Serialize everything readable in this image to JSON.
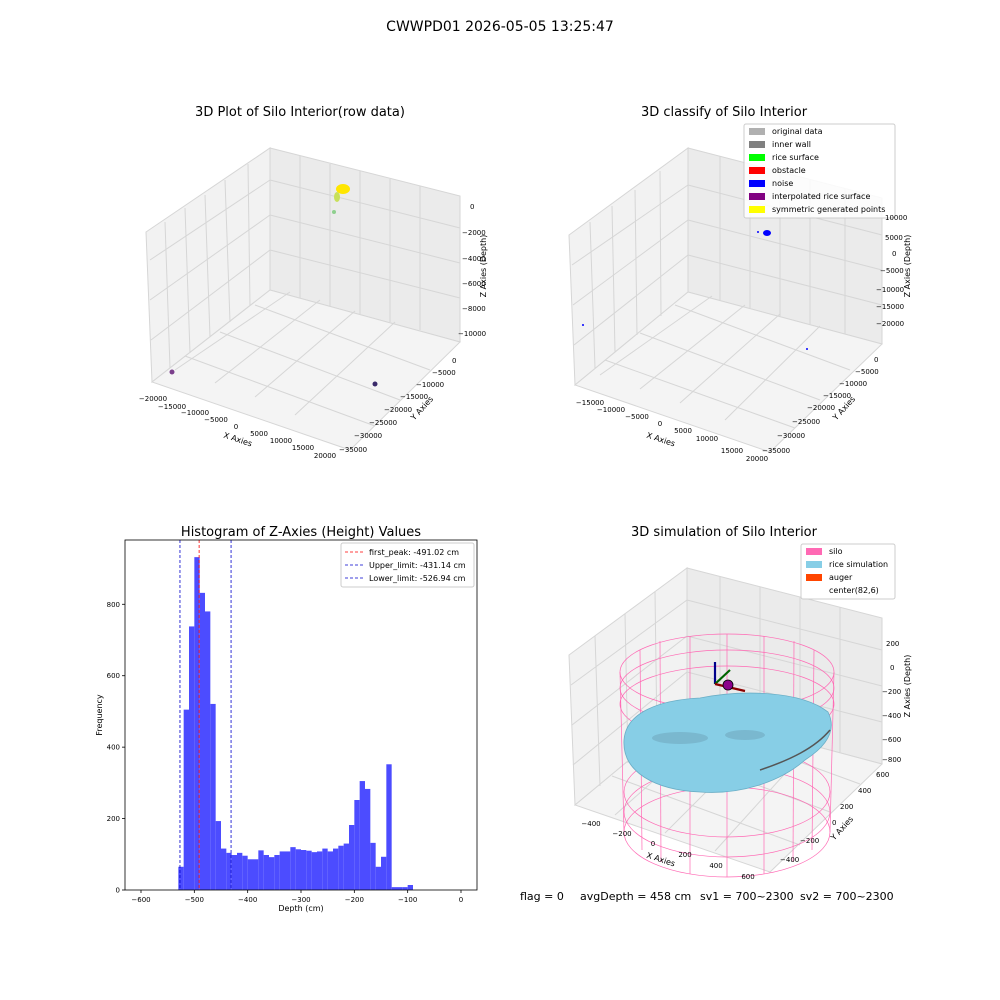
{
  "figure_title": "CWWPD01 2026-05-05 13:25:47",
  "footer": {
    "flag": "flag = 0",
    "avg_depth": "avgDepth = 458 cm",
    "sv1": "sv1 = 700~2300",
    "sv2": "sv2 = 700~2300"
  },
  "colors": {
    "histogram_bar": "#4c4cff",
    "first_peak_line": "#ff0000",
    "limit_lines": "#0000cc",
    "silo_wire": "#ff69b4",
    "rice_surface": "#87cee6",
    "auger": "#ff4500"
  },
  "chart_data": [
    {
      "type": "scatter",
      "title": "3D Plot of Silo Interior(row data)",
      "xlabel": "X Axies",
      "ylabel": "Y Axies",
      "zlabel": "Z Axies (Depth)",
      "x_ticks": [
        "−20000",
        "−15000",
        "−10000",
        "−5000",
        "0",
        "5000",
        "10000",
        "15000",
        "20000"
      ],
      "y_ticks": [
        "0",
        "−5000",
        "−10000",
        "−15000",
        "−20000",
        "−25000",
        "−30000",
        "−35000"
      ],
      "z_ticks": [
        "0",
        "−2000",
        "−4000",
        "−6000",
        "−8000",
        "−10000"
      ],
      "xlim": [
        -20000,
        20000
      ],
      "ylim": [
        -35000,
        0
      ],
      "zlim": [
        -10000,
        0
      ]
    },
    {
      "type": "scatter",
      "title": "3D classify of Silo Interior",
      "xlabel": "X Axies",
      "ylabel": "Y Axies",
      "zlabel": "Z Axies (Depth)",
      "x_ticks": [
        "−15000",
        "−10000",
        "−5000",
        "0",
        "5000",
        "10000",
        "15000",
        "20000"
      ],
      "y_ticks": [
        "0",
        "−5000",
        "−10000",
        "−15000",
        "−20000",
        "−25000",
        "−30000",
        "−35000"
      ],
      "z_ticks": [
        "10000",
        "5000",
        "0",
        "−5000",
        "−10000",
        "−15000",
        "−20000"
      ],
      "legend_position": "top-right",
      "legend": [
        {
          "label": "original data",
          "color": "#b0b0b0"
        },
        {
          "label": "inner wall",
          "color": "#808080"
        },
        {
          "label": "rice surface",
          "color": "#00ff00"
        },
        {
          "label": "obstacle",
          "color": "#ff0000"
        },
        {
          "label": "noise",
          "color": "#0000ff"
        },
        {
          "label": "interpolated rice surface",
          "color": "#800080"
        },
        {
          "label": "symmetric generated points",
          "color": "#ffff00"
        }
      ]
    },
    {
      "type": "bar",
      "title": "Histogram of Z-Axies (Height) Values",
      "xlabel": "Depth (cm)",
      "ylabel": "Frequency",
      "xlim": [
        -630,
        30
      ],
      "ylim": [
        0,
        980
      ],
      "x_ticks": [
        -600,
        -500,
        -400,
        -300,
        -200,
        -100,
        0
      ],
      "y_ticks": [
        0,
        200,
        400,
        600,
        800
      ],
      "bin_width": 10,
      "bin_starts": [
        -530,
        -520,
        -510,
        -500,
        -490,
        -480,
        -470,
        -460,
        -450,
        -440,
        -430,
        -420,
        -410,
        -400,
        -390,
        -380,
        -370,
        -360,
        -350,
        -340,
        -330,
        -320,
        -310,
        -300,
        -290,
        -280,
        -270,
        -260,
        -250,
        -240,
        -230,
        -220,
        -210,
        -200,
        -190,
        -180,
        -170,
        -160,
        -150,
        -140,
        -130,
        -120,
        -110,
        -100,
        -90,
        -80,
        -70,
        -60,
        -50,
        -40,
        -30,
        -20,
        -10
      ],
      "values": [
        65,
        505,
        738,
        932,
        832,
        780,
        521,
        193,
        116,
        104,
        98,
        104,
        96,
        86,
        86,
        111,
        98,
        92,
        98,
        108,
        108,
        120,
        114,
        112,
        110,
        106,
        108,
        116,
        108,
        116,
        124,
        130,
        182,
        252,
        305,
        283,
        132,
        65,
        93,
        352,
        8,
        8,
        8,
        14,
        0,
        0,
        0,
        0,
        0,
        0,
        0,
        0,
        0
      ],
      "reference_lines": [
        {
          "label": "first_peak: -491.02 cm",
          "x": -491.02,
          "color": "#ff0000"
        },
        {
          "label": "Upper_limit: -431.14 cm",
          "x": -431.14,
          "color": "#0000cc"
        },
        {
          "label": "Lower_limit: -526.94 cm",
          "x": -526.94,
          "color": "#0000cc"
        }
      ],
      "legend_position": "top-right"
    },
    {
      "type": "surface",
      "title": "3D simulation of Silo Interior",
      "xlabel": "X Axies",
      "ylabel": "Y Axies",
      "zlabel": "Z Axies (Depth)",
      "x_ticks": [
        "−400",
        "−200",
        "0",
        "200",
        "400",
        "600"
      ],
      "y_ticks": [
        "600",
        "400",
        "200",
        "0",
        "−200",
        "−400"
      ],
      "z_ticks": [
        "200",
        "0",
        "−200",
        "−400",
        "−600",
        "−800"
      ],
      "legend_position": "top-right",
      "legend": [
        {
          "label": "silo",
          "color": "#ff69b4"
        },
        {
          "label": "rice simulation",
          "color": "#87cee6"
        },
        {
          "label": "auger",
          "color": "#ff4500"
        },
        {
          "label": "center(82,6)",
          "color": ""
        }
      ]
    }
  ]
}
